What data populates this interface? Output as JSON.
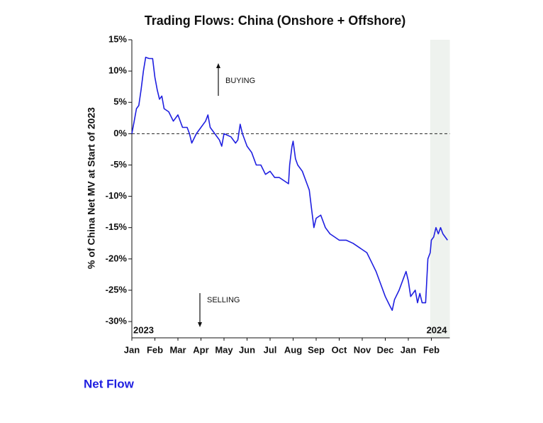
{
  "chart_data": {
    "type": "line",
    "title": "Trading Flows: China (Onshore + Offshore)",
    "ylabel": "% of China Net MV at Start of 2023",
    "annotations": [
      "BUYING",
      "SELLING"
    ],
    "year_labels": [
      "2023",
      "2024"
    ],
    "shaded_region": [
      12.95,
      13.8
    ],
    "xlim": [
      0,
      13.8
    ],
    "xticks": [
      {
        "value": 0,
        "label": "Jan"
      },
      {
        "value": 1,
        "label": "Feb"
      },
      {
        "value": 2,
        "label": "Mar"
      },
      {
        "value": 3,
        "label": "Apr"
      },
      {
        "value": 4,
        "label": "May"
      },
      {
        "value": 5,
        "label": "Jun"
      },
      {
        "value": 6,
        "label": "Jul"
      },
      {
        "value": 7,
        "label": "Aug"
      },
      {
        "value": 8,
        "label": "Sep"
      },
      {
        "value": 9,
        "label": "Oct"
      },
      {
        "value": 10,
        "label": "Nov"
      },
      {
        "value": 11,
        "label": "Dec"
      },
      {
        "value": 12,
        "label": "Jan"
      },
      {
        "value": 13,
        "label": "Feb"
      }
    ],
    "ylim": [
      -32.6,
      15
    ],
    "yticks": [
      {
        "value": 15,
        "label": "15%"
      },
      {
        "value": 10,
        "label": "10%"
      },
      {
        "value": 5,
        "label": "5%"
      },
      {
        "value": 0,
        "label": "0%"
      },
      {
        "value": -5,
        "label": "-5%"
      },
      {
        "value": -10,
        "label": "-10%"
      },
      {
        "value": -15,
        "label": "-15%"
      },
      {
        "value": -20,
        "label": "-20%"
      },
      {
        "value": -25,
        "label": "-25%"
      },
      {
        "value": -30,
        "label": "-30%"
      }
    ],
    "x": [
      0,
      0.1,
      0.2,
      0.3,
      0.4,
      0.5,
      0.6,
      0.75,
      0.9,
      1.0,
      1.1,
      1.2,
      1.3,
      1.4,
      1.6,
      1.8,
      2.0,
      2.2,
      2.4,
      2.5,
      2.6,
      2.8,
      3.0,
      3.2,
      3.3,
      3.4,
      3.6,
      3.8,
      3.9,
      4.0,
      4.3,
      4.5,
      4.6,
      4.7,
      4.8,
      5.0,
      5.2,
      5.4,
      5.6,
      5.8,
      6.0,
      6.2,
      6.4,
      6.6,
      6.8,
      6.85,
      6.95,
      7.0,
      7.1,
      7.2,
      7.4,
      7.6,
      7.7,
      7.8,
      7.9,
      8.0,
      8.2,
      8.4,
      8.6,
      8.8,
      9.0,
      9.3,
      9.6,
      9.8,
      10.0,
      10.2,
      10.4,
      10.6,
      10.8,
      11.0,
      11.2,
      11.3,
      11.4,
      11.6,
      11.8,
      11.9,
      12.0,
      12.1,
      12.3,
      12.4,
      12.5,
      12.6,
      12.75,
      12.85,
      12.95,
      13.0,
      13.1,
      13.2,
      13.3,
      13.4,
      13.5,
      13.6,
      13.7
    ],
    "series": [
      {
        "name": "Net Flow",
        "color": "#1f1fe0",
        "values": [
          0,
          2,
          4,
          4.5,
          7,
          10,
          12.2,
          12,
          12,
          9,
          7,
          5.5,
          6,
          4,
          3.5,
          2,
          3,
          1,
          1,
          0,
          -1.5,
          0,
          1,
          2,
          3,
          1,
          0,
          -1,
          -2,
          0,
          -0.5,
          -1.5,
          -1,
          1.5,
          0,
          -2,
          -3,
          -5,
          -5,
          -6.5,
          -6,
          -7,
          -7,
          -7.5,
          -8,
          -5,
          -2,
          -1.2,
          -4,
          -5,
          -6,
          -8,
          -9,
          -12,
          -15,
          -13.5,
          -13,
          -15,
          -16,
          -16.5,
          -17,
          -17,
          -17.5,
          -18,
          -18.5,
          -19,
          -20.5,
          -22,
          -24,
          -26,
          -27.5,
          -28.2,
          -26.5,
          -25,
          -23,
          -22,
          -23.5,
          -26,
          -25,
          -27,
          -25.5,
          -27,
          -27,
          -20,
          -19,
          -17,
          -16.5,
          -15,
          -16,
          -15,
          -16,
          -16.5,
          -17
        ]
      }
    ]
  }
}
